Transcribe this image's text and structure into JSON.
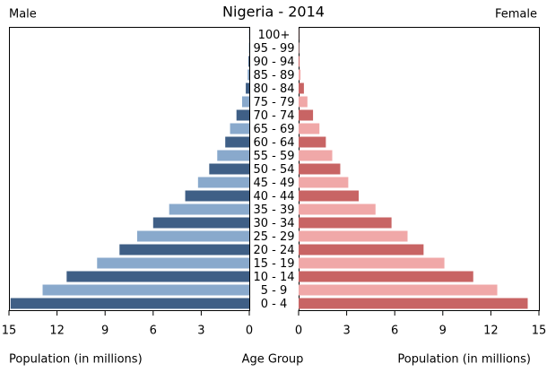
{
  "chart_data": {
    "type": "pyramid",
    "title": "Nigeria - 2014",
    "category_label": "Age Group",
    "categories": [
      "0 - 4",
      "5 - 9",
      "10 - 14",
      "15 - 19",
      "20 - 24",
      "25 - 29",
      "30 - 34",
      "35 - 39",
      "40 - 44",
      "45 - 49",
      "50 - 54",
      "55 - 59",
      "60 - 64",
      "65 - 69",
      "70 - 74",
      "75 - 79",
      "80 - 84",
      "85 - 89",
      "90 - 94",
      "95 - 99",
      "100+"
    ],
    "series": [
      {
        "name": "Male",
        "side": "left",
        "xlabel": "Population (in millions)",
        "colors": [
          "#3f5f86",
          "#89a9cc"
        ],
        "values": [
          14.9,
          12.9,
          11.4,
          9.5,
          8.1,
          7.0,
          6.0,
          5.0,
          4.0,
          3.2,
          2.5,
          2.0,
          1.5,
          1.2,
          0.8,
          0.45,
          0.22,
          0.1,
          0.05,
          0.02,
          0.01
        ]
      },
      {
        "name": "Female",
        "side": "right",
        "xlabel": "Population (in millions)",
        "colors": [
          "#c86464",
          "#f0a8a8"
        ],
        "values": [
          14.3,
          12.4,
          10.9,
          9.1,
          7.8,
          6.8,
          5.8,
          4.8,
          3.75,
          3.1,
          2.6,
          2.1,
          1.7,
          1.3,
          0.9,
          0.55,
          0.33,
          0.12,
          0.06,
          0.03,
          0.01
        ]
      }
    ],
    "xlim": [
      0,
      15
    ],
    "xticks": [
      0,
      3,
      6,
      9,
      12,
      15
    ]
  }
}
